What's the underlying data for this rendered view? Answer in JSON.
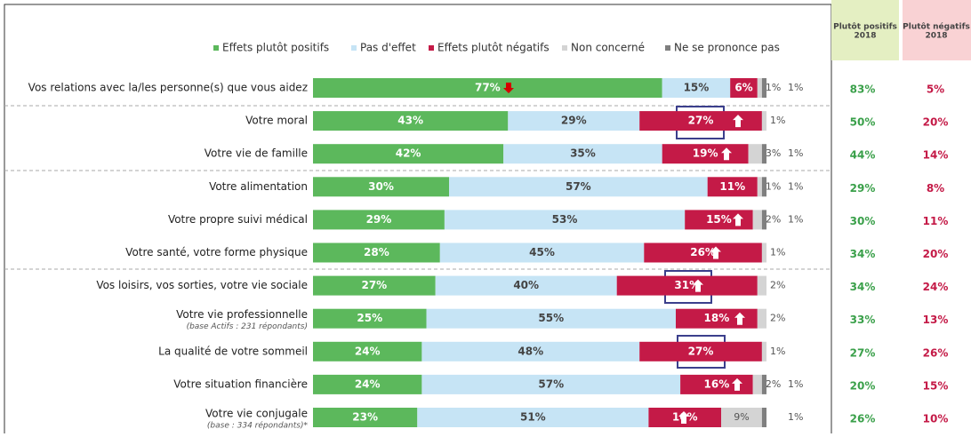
{
  "chart_data": {
    "type": "bar",
    "orientation": "horizontal",
    "stacked": true,
    "legend_position": "top",
    "categories": [
      "Vos relations avec la/les personne(s) que vous aidez",
      "Votre moral",
      "Votre vie de famille",
      "Votre alimentation",
      "Votre propre suivi médical",
      "Votre santé, votre forme physique",
      "Vos loisirs, vos sorties, votre vie sociale",
      "Votre vie professionnelle",
      "La qualité de votre sommeil",
      "Votre situation financière",
      "Votre vie conjugale"
    ],
    "category_notes": [
      null,
      null,
      null,
      null,
      null,
      null,
      null,
      "(base Actifs : 231 répondants)",
      null,
      null,
      "(base : 334 répondants)*"
    ],
    "xlim": [
      0,
      100
    ],
    "series": [
      {
        "name": "Effets plutôt positifs",
        "color": "#5cb85c",
        "values": [
          77,
          43,
          42,
          30,
          29,
          28,
          27,
          25,
          24,
          24,
          23
        ],
        "value_labels": [
          "77%",
          "43%",
          "42%",
          "30%",
          "29%",
          "28%",
          "27%",
          "25%",
          "24%",
          "24%",
          "23%"
        ]
      },
      {
        "name": "Pas d'effet",
        "color": "#c6e4f5",
        "values": [
          15,
          29,
          35,
          57,
          53,
          45,
          40,
          55,
          48,
          57,
          51
        ],
        "value_labels": [
          "15%",
          "29%",
          "35%",
          "57%",
          "53%",
          "45%",
          "40%",
          "55%",
          "48%",
          "57%",
          "51%"
        ]
      },
      {
        "name": "Effets plutôt négatifs",
        "color": "#c41a47",
        "values": [
          6,
          27,
          19,
          11,
          15,
          26,
          31,
          18,
          27,
          16,
          16
        ],
        "value_labels": [
          "6%",
          "27%",
          "19%",
          "11%",
          "15%",
          "26%",
          "31%",
          "18%",
          "27%",
          "16%",
          "16%"
        ]
      },
      {
        "name": "Non concerné",
        "color": "#d4d4d4",
        "values": [
          1,
          1,
          3,
          1,
          2,
          1,
          2,
          2,
          1,
          2,
          9
        ],
        "value_labels": [
          "1%",
          "1%",
          "3%",
          "1%",
          "2%",
          "1%",
          "2%",
          "2%",
          "1%",
          "2%",
          "9%"
        ]
      },
      {
        "name": "Ne se prononce pas",
        "color": "#7f7f7f",
        "values": [
          1,
          0,
          1,
          1,
          1,
          0,
          0,
          0,
          0,
          1,
          1
        ],
        "value_labels": [
          "1%",
          null,
          "1%",
          "1%",
          "1%",
          null,
          null,
          null,
          null,
          "1%",
          "1%"
        ]
      }
    ]
  },
  "table": {
    "headers": [
      [
        "Plutôt positifs",
        "2018"
      ],
      [
        "Plutôt négatifs",
        "2018"
      ]
    ],
    "rows": [
      [
        "83%",
        "5%"
      ],
      [
        "50%",
        "20%"
      ],
      [
        "44%",
        "14%"
      ],
      [
        "29%",
        "8%"
      ],
      [
        "30%",
        "11%"
      ],
      [
        "34%",
        "20%"
      ],
      [
        "34%",
        "24%"
      ],
      [
        "33%",
        "13%"
      ],
      [
        "27%",
        "26%"
      ],
      [
        "20%",
        "15%"
      ],
      [
        "26%",
        "10%"
      ]
    ]
  }
}
